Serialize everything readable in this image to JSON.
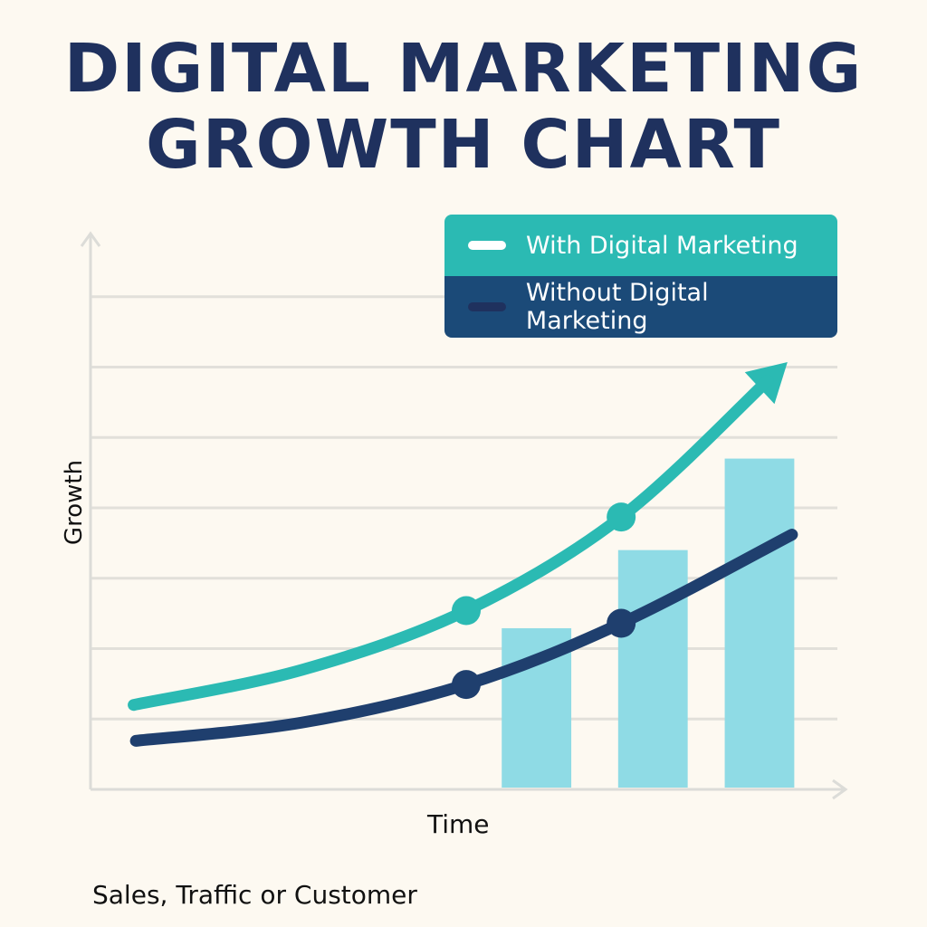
{
  "chart_data": {
    "type": "line",
    "title": "DIGITAL MARKETING GROWTH CHART",
    "xlabel": "Time",
    "ylabel": "Growth",
    "footnote": "Sales, Traffic  or Customer",
    "xlim": [
      0,
      10
    ],
    "ylim": [
      0,
      8
    ],
    "grid": true,
    "gridlines_y": [
      1,
      2,
      3,
      4,
      5,
      6,
      7
    ],
    "legend_placement": "top-right",
    "series": [
      {
        "name": "With Digital Marketing",
        "color": "#2bbab3",
        "x": [
          0.57,
          2.8,
          4.97,
          7.02,
          9.22
        ],
        "y": [
          1.2,
          1.7,
          2.54,
          3.87,
          6.07
        ],
        "markers": [
          2,
          3
        ],
        "arrow": true
      },
      {
        "name": "Without Digital Marketing",
        "color": "#1f3f6e",
        "x": [
          0.6,
          2.8,
          4.97,
          7.02,
          9.28
        ],
        "y": [
          0.69,
          0.95,
          1.49,
          2.36,
          3.62
        ],
        "markers": [
          2,
          3
        ],
        "arrow": false
      }
    ],
    "bars": {
      "color": "#8fdbe5",
      "width": 0.92,
      "x": [
        5.9,
        7.44,
        8.85
      ],
      "values": [
        2.29,
        3.4,
        4.7
      ]
    }
  }
}
